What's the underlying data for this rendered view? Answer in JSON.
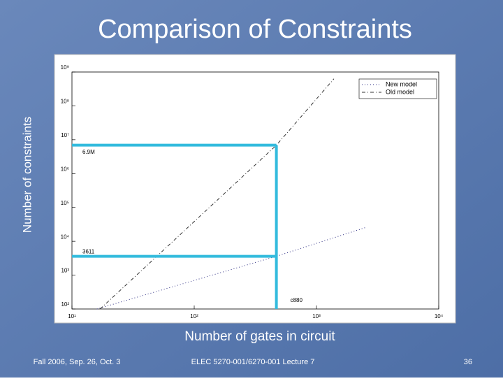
{
  "slide": {
    "footer_left": "Fall 2006, Sep. 26, Oct. 3",
    "footer_center": "ELEC 5270-001/6270-001 Lecture 7",
    "page_number": "36"
  },
  "chart_data": {
    "type": "line",
    "title": "Comparison of Constraints",
    "x_label": "Number of gates in circuit",
    "y_label": "Number of constraints",
    "log_x": true,
    "log_y": true,
    "legend": "upper-right",
    "xlim": [
      10,
      10000
    ],
    "ylim": [
      100,
      1000000000
    ],
    "xticks": [
      {
        "value": 10,
        "label": "10¹"
      },
      {
        "value": 100,
        "label": "10²"
      },
      {
        "value": 1000,
        "label": "10³"
      },
      {
        "value": 10000,
        "label": "10⁴"
      }
    ],
    "yticks": [
      {
        "value": 100,
        "label": "10²"
      },
      {
        "value": 1000,
        "label": "10³"
      },
      {
        "value": 10000,
        "label": "10⁴"
      },
      {
        "value": 100000,
        "label": "10⁵"
      },
      {
        "value": 1000000,
        "label": "10⁶"
      },
      {
        "value": 10000000,
        "label": "10⁷"
      },
      {
        "value": 100000000,
        "label": "10⁸"
      },
      {
        "value": 1000000000,
        "label": "10⁹"
      }
    ],
    "series": [
      {
        "name": "New model",
        "color": "#2a2a80",
        "dash": "1,3",
        "x": [
          16,
          470,
          2570
        ],
        "values": [
          100,
          3611,
          26000
        ]
      },
      {
        "name": "Old model",
        "color": "#333333",
        "dash": "5,3,1,3",
        "x": [
          17,
          470,
          1390
        ],
        "values": [
          100,
          6900000,
          630000000
        ]
      }
    ],
    "highlight_color": "#33bbdd",
    "highlights": [
      {
        "label": "6.9M",
        "value": 6900000
      },
      {
        "label": "3611",
        "value": 3611
      }
    ],
    "highlight_x": {
      "value": 470,
      "label": "c880"
    }
  }
}
